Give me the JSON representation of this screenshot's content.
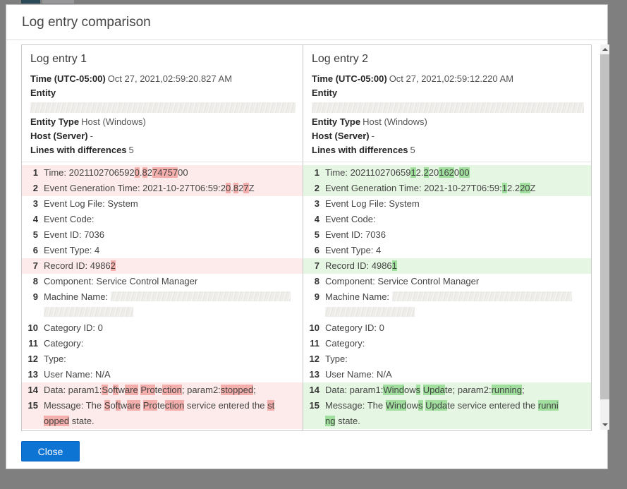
{
  "colors": {
    "backdrop": "#7f7f7f",
    "diff_removed_bg": "#fcebea",
    "diff_removed_hl": "#f4aeab",
    "diff_added_bg": "#e5f6e2",
    "diff_added_hl": "#a0df9d",
    "button_bg": "#0d74d4",
    "button_text": "#ffffff"
  },
  "dialog": {
    "title": "Log entry comparison",
    "close_label": "Close"
  },
  "entries": [
    {
      "title": "Log entry 1",
      "time_label": "Time (UTC-05:00)",
      "time_value": "Oct 27, 2021,02:59:20.827 AM",
      "entity_label": "Entity",
      "entity_type_label": "Entity Type",
      "entity_type_value": "Host (Windows)",
      "host_label": "Host (Server)",
      "host_value": "-",
      "diff_label": "Lines with differences",
      "diff_count": "5",
      "diff_kind": "removed",
      "lines": [
        {
          "num": "1",
          "changed": true,
          "segments": [
            {
              "t": "Time: 2021102706592"
            },
            {
              "t": "0",
              "h": true
            },
            {
              "t": "."
            },
            {
              "t": "8",
              "h": true
            },
            {
              "t": "2"
            },
            {
              "t": "74757",
              "h": true
            },
            {
              "t": "00"
            }
          ]
        },
        {
          "num": "2",
          "changed": true,
          "segments": [
            {
              "t": "Event Generation Time: 2021-10-27T06:59:2"
            },
            {
              "t": "0",
              "h": true
            },
            {
              "t": "."
            },
            {
              "t": "8",
              "h": true
            },
            {
              "t": "2"
            },
            {
              "t": "7",
              "h": true
            },
            {
              "t": "Z"
            }
          ]
        },
        {
          "num": "3",
          "segments": [
            {
              "t": "Event Log File: System"
            }
          ]
        },
        {
          "num": "4",
          "segments": [
            {
              "t": "Event Code:"
            }
          ]
        },
        {
          "num": "5",
          "segments": [
            {
              "t": "Event ID: 7036"
            }
          ]
        },
        {
          "num": "6",
          "segments": [
            {
              "t": "Event Type: 4"
            }
          ]
        },
        {
          "num": "7",
          "changed": true,
          "segments": [
            {
              "t": "Record ID: 4986"
            },
            {
              "t": "2",
              "h": true
            }
          ]
        },
        {
          "num": "8",
          "segments": [
            {
              "t": "Component: Service Control Manager"
            }
          ]
        },
        {
          "num": "9",
          "segments": [
            {
              "t": "Machine Name: "
            },
            {
              "redact": "wide"
            },
            {
              "br": true
            },
            {
              "redact": "narrow"
            }
          ]
        },
        {
          "num": "10",
          "segments": [
            {
              "t": "Category ID: 0"
            }
          ]
        },
        {
          "num": "11",
          "segments": [
            {
              "t": "Category:"
            }
          ]
        },
        {
          "num": "12",
          "segments": [
            {
              "t": "Type:"
            }
          ]
        },
        {
          "num": "13",
          "segments": [
            {
              "t": "User Name: N/A"
            }
          ]
        },
        {
          "num": "14",
          "changed": true,
          "segments": [
            {
              "t": "Data: param1:"
            },
            {
              "t": "S",
              "h": true
            },
            {
              "t": "o"
            },
            {
              "t": "ft",
              "h": true
            },
            {
              "t": "w"
            },
            {
              "t": "are",
              "h": true
            },
            {
              "t": " "
            },
            {
              "t": "Pro",
              "h": true
            },
            {
              "t": "te"
            },
            {
              "t": "ction",
              "h": true
            },
            {
              "t": "; param2:"
            },
            {
              "t": "stopped",
              "h": true
            },
            {
              "t": ";"
            }
          ]
        },
        {
          "num": "15",
          "changed": true,
          "segments": [
            {
              "t": "Message: The "
            },
            {
              "t": "S",
              "h": true
            },
            {
              "t": "o"
            },
            {
              "t": "ft",
              "h": true
            },
            {
              "t": "w"
            },
            {
              "t": "are",
              "h": true
            },
            {
              "t": " "
            },
            {
              "t": "Pro",
              "h": true
            },
            {
              "t": "te"
            },
            {
              "t": "ction",
              "h": true
            },
            {
              "t": " service entered the "
            },
            {
              "t": "st",
              "h": true
            },
            {
              "br": true
            },
            {
              "t": "opped",
              "h": true
            },
            {
              "t": " state."
            }
          ]
        }
      ]
    },
    {
      "title": "Log entry 2",
      "time_label": "Time (UTC-05:00)",
      "time_value": "Oct 27, 2021,02:59:12.220 AM",
      "entity_label": "Entity",
      "entity_type_label": "Entity Type",
      "entity_type_value": "Host (Windows)",
      "host_label": "Host (Server)",
      "host_value": "-",
      "diff_label": "Lines with differences",
      "diff_count": "5",
      "diff_kind": "added",
      "lines": [
        {
          "num": "1",
          "changed": true,
          "segments": [
            {
              "t": "Time: 202110270659"
            },
            {
              "t": "1",
              "h": true
            },
            {
              "t": "2."
            },
            {
              "t": "2",
              "h": true
            },
            {
              "t": "20"
            },
            {
              "t": "162",
              "h": true
            },
            {
              "t": "0"
            },
            {
              "t": "00",
              "h": true
            }
          ]
        },
        {
          "num": "2",
          "changed": true,
          "segments": [
            {
              "t": "Event Generation Time: 2021-10-27T06:59:"
            },
            {
              "t": "1",
              "h": true
            },
            {
              "t": "2.2"
            },
            {
              "t": "20",
              "h": true
            },
            {
              "t": "Z"
            }
          ]
        },
        {
          "num": "3",
          "segments": [
            {
              "t": "Event Log File: System"
            }
          ]
        },
        {
          "num": "4",
          "segments": [
            {
              "t": "Event Code:"
            }
          ]
        },
        {
          "num": "5",
          "segments": [
            {
              "t": "Event ID: 7036"
            }
          ]
        },
        {
          "num": "6",
          "segments": [
            {
              "t": "Event Type: 4"
            }
          ]
        },
        {
          "num": "7",
          "changed": true,
          "segments": [
            {
              "t": "Record ID: 4986"
            },
            {
              "t": "1",
              "h": true
            }
          ]
        },
        {
          "num": "8",
          "segments": [
            {
              "t": "Component: Service Control Manager"
            }
          ]
        },
        {
          "num": "9",
          "segments": [
            {
              "t": "Machine Name: "
            },
            {
              "redact": "wide"
            },
            {
              "br": true
            },
            {
              "redact": "narrow"
            }
          ]
        },
        {
          "num": "10",
          "segments": [
            {
              "t": "Category ID: 0"
            }
          ]
        },
        {
          "num": "11",
          "segments": [
            {
              "t": "Category:"
            }
          ]
        },
        {
          "num": "12",
          "segments": [
            {
              "t": "Type:"
            }
          ]
        },
        {
          "num": "13",
          "segments": [
            {
              "t": "User Name: N/A"
            }
          ]
        },
        {
          "num": "14",
          "changed": true,
          "segments": [
            {
              "t": "Data: param1:"
            },
            {
              "t": "Wind",
              "h": true
            },
            {
              "t": "ow"
            },
            {
              "t": "s",
              "h": true
            },
            {
              "t": " "
            },
            {
              "t": "Upda",
              "h": true
            },
            {
              "t": "te; param2:"
            },
            {
              "t": "running",
              "h": true
            },
            {
              "t": ";"
            }
          ]
        },
        {
          "num": "15",
          "changed": true,
          "segments": [
            {
              "t": "Message: The "
            },
            {
              "t": "Wind",
              "h": true
            },
            {
              "t": "ow"
            },
            {
              "t": "s",
              "h": true
            },
            {
              "t": " "
            },
            {
              "t": "Upda",
              "h": true
            },
            {
              "t": "te service entered the "
            },
            {
              "t": "runni",
              "h": true
            },
            {
              "br": true
            },
            {
              "t": "ng",
              "h": true
            },
            {
              "t": " state."
            }
          ]
        }
      ]
    }
  ]
}
